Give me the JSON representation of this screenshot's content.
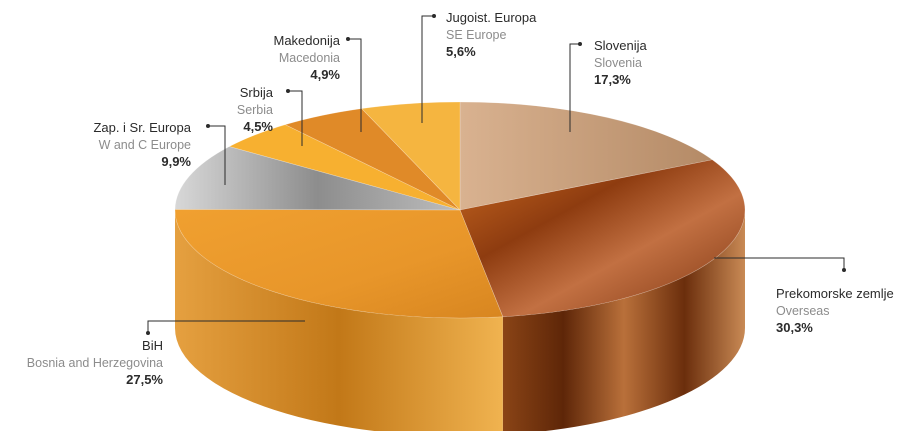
{
  "chart_data": {
    "type": "pie",
    "three_d": true,
    "title": "",
    "legend": "none",
    "slices": [
      {
        "label": "Slovenija",
        "label_en": "Slovenia",
        "value": 17.3,
        "value_label": "17,3%",
        "color": "#c9a27e",
        "side_color": "#9c6f4a"
      },
      {
        "label": "Prekomorske zemlje",
        "label_en": "Overseas",
        "value": 30.3,
        "value_label": "30,3%",
        "color": "#a8551e",
        "side_color": "#7a3410"
      },
      {
        "label": "BiH",
        "label_en": "Bosnia and Herzegovina",
        "value": 27.5,
        "value_label": "27,5%",
        "color": "#f0a028",
        "side_color": "#c77d18"
      },
      {
        "label": "Zap. i Sr. Europa",
        "label_en": "W and C Europe",
        "value": 9.9,
        "value_label": "9,9%",
        "color": "#a9a9a9",
        "side_color": "#7d7d7d"
      },
      {
        "label": "Srbija",
        "label_en": "Serbia",
        "value": 4.5,
        "value_label": "4,5%",
        "color": "#f7b030",
        "side_color": "#d08a1c"
      },
      {
        "label": "Makedonija",
        "label_en": "Macedonia",
        "value": 4.9,
        "value_label": "4,9%",
        "color": "#e08a28",
        "side_color": "#b86618"
      },
      {
        "label": "Jugoist. Europa",
        "label_en": "SE Europe",
        "value": 5.6,
        "value_label": "5,6%",
        "color": "#f5b540",
        "side_color": "#cf8e22"
      }
    ]
  }
}
